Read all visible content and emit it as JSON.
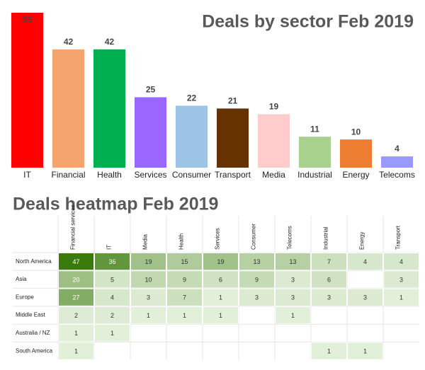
{
  "chart_data": [
    {
      "type": "bar",
      "title": "Deals by sector Feb 2019",
      "categories": [
        "IT",
        "Financial",
        "Health",
        "Services",
        "Consumer",
        "Transport",
        "Media",
        "Industrial",
        "Energy",
        "Telecoms"
      ],
      "values": [
        55,
        42,
        42,
        25,
        22,
        21,
        19,
        11,
        10,
        4
      ],
      "colors": [
        "#ff0000",
        "#f4a46c",
        "#00b050",
        "#9966ff",
        "#9dc3e6",
        "#663300",
        "#ffcccc",
        "#a9d18e",
        "#ed7d31",
        "#9999ff"
      ],
      "ylim": [
        0,
        55
      ]
    },
    {
      "type": "heatmap",
      "title": "Deals heatmap Feb 2019",
      "x": [
        "Financial services",
        "IT",
        "Media",
        "Health",
        "Services",
        "Consumer",
        "Telecoms",
        "Industrial",
        "Energy",
        "Transport"
      ],
      "y": [
        "North America",
        "Asia",
        "Europe",
        "Middle East",
        "Australia / NZ",
        "South America"
      ],
      "values": [
        [
          47,
          36,
          19,
          15,
          19,
          13,
          13,
          7,
          4,
          4
        ],
        [
          20,
          5,
          10,
          9,
          6,
          9,
          3,
          6,
          null,
          3
        ],
        [
          27,
          4,
          3,
          7,
          1,
          3,
          3,
          3,
          3,
          1
        ],
        [
          2,
          2,
          1,
          1,
          1,
          null,
          1,
          null,
          null,
          null
        ],
        [
          1,
          1,
          null,
          null,
          null,
          null,
          null,
          null,
          null,
          null
        ],
        [
          1,
          null,
          null,
          null,
          null,
          null,
          null,
          1,
          1,
          null
        ]
      ],
      "colorscale": [
        "#e2efd9",
        "#3a7a0c"
      ]
    }
  ]
}
